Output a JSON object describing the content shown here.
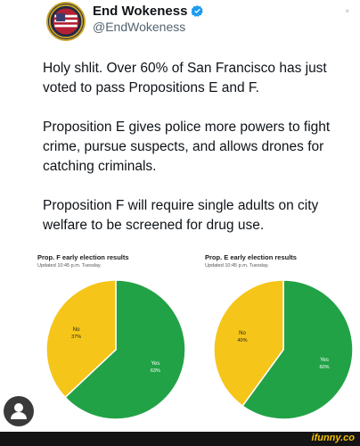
{
  "header": {
    "display_name": "End Wokeness",
    "handle": "@EndWokeness",
    "avatar_icon": "patriot-badge-avatar",
    "verified_icon": "verified-badge-icon",
    "verified_color": "#1d9bf0"
  },
  "tweet": {
    "paragraphs": [
      "Holy shlit. Over 60% of San Francisco has just voted to pass Propositions E and F.",
      "Proposition E gives police more powers to fight crime, pursue suspects, and allows drones for catching criminals.",
      "Proposition F will require single adults on city welfare to be screened for drug use."
    ]
  },
  "chart_data": [
    {
      "type": "pie",
      "title": "Prop. F early election results",
      "subtitle": "Updated 10:45 p.m. Tuesday.",
      "slices": [
        {
          "label": "Yes",
          "value": 63,
          "value_label": "63%",
          "color": "#22a246"
        },
        {
          "label": "No",
          "value": 37,
          "value_label": "37%",
          "color": "#f5c519"
        }
      ]
    },
    {
      "type": "pie",
      "title": "Prop. E early election results",
      "subtitle": "Updated 10:45 p.m. Tuesday.",
      "slices": [
        {
          "label": "Yes",
          "value": 60,
          "value_label": "60%",
          "color": "#22a246"
        },
        {
          "label": "No",
          "value": 40,
          "value_label": "40%",
          "color": "#f5c519"
        }
      ]
    }
  ],
  "footer": {
    "watermark": "ifunny.co",
    "watermark_color": "#f2c200"
  },
  "fab_icon": "user-profile-icon"
}
